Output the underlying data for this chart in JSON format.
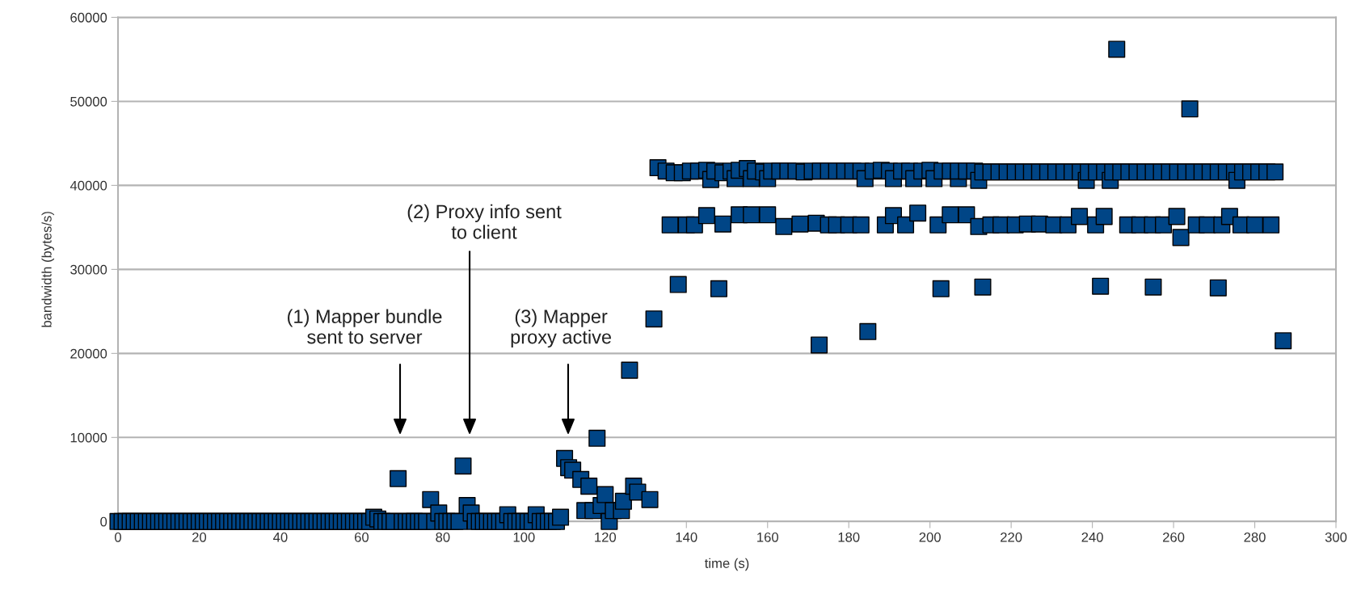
{
  "chart_data": {
    "type": "scatter",
    "xlabel": "time (s)",
    "ylabel": "bandwidth (bytes/s)",
    "xlim": [
      0,
      300
    ],
    "xticks": [
      0,
      20,
      40,
      60,
      80,
      100,
      120,
      140,
      160,
      180,
      200,
      220,
      240,
      260,
      280,
      300
    ],
    "ylim": [
      0,
      60000
    ],
    "yticks": [
      0,
      10000,
      20000,
      30000,
      40000,
      50000,
      60000
    ],
    "grid": "y",
    "marker": "square",
    "annotations": [
      "(1) Mapper bundle\nsent to server",
      "(2) Proxy info sent\nto client",
      "(3) Mapper\nproxy active"
    ],
    "series": [
      {
        "color": "#004586",
        "x": [
          0,
          1,
          2,
          3,
          4,
          5,
          6,
          7,
          8,
          9,
          10,
          11,
          12,
          13,
          14,
          15,
          16,
          17,
          18,
          19,
          20,
          21,
          22,
          23,
          24,
          25,
          26,
          27,
          28,
          29,
          30,
          31,
          32,
          33,
          34,
          35,
          36,
          37,
          38,
          39,
          40,
          41,
          42,
          43,
          44,
          45,
          46,
          47,
          48,
          49,
          50,
          51,
          52,
          53,
          54,
          55,
          56,
          57,
          58,
          59,
          60,
          61,
          62,
          63,
          64,
          65,
          66,
          67,
          68,
          69,
          70,
          71,
          72,
          73,
          74,
          75,
          76,
          77,
          78,
          79,
          80,
          81,
          82,
          83,
          84,
          85,
          86,
          87,
          88,
          89,
          90,
          91,
          92,
          93,
          94,
          95,
          96,
          97,
          98,
          99,
          100,
          101,
          102,
          103,
          104,
          105,
          106,
          107,
          108,
          109,
          110,
          111,
          112,
          114,
          115,
          116,
          117,
          118,
          119,
          120,
          121,
          122,
          124,
          124.5,
          126,
          127,
          128,
          131,
          132,
          133,
          135,
          136,
          137,
          138,
          139,
          140,
          141,
          142,
          143,
          145,
          145,
          146,
          147,
          148,
          149,
          149,
          151,
          152,
          153,
          153,
          155,
          156,
          156,
          157,
          159,
          160,
          160,
          161,
          163,
          164,
          165,
          167,
          168,
          169,
          171,
          172,
          172.7,
          173,
          175,
          175,
          177,
          177,
          179,
          180,
          181,
          183,
          183,
          184,
          184.7,
          186,
          188,
          189,
          190,
          191,
          191,
          193,
          194,
          195,
          196,
          197,
          198,
          200,
          201,
          202,
          202.7,
          203,
          205,
          205,
          207,
          207,
          209,
          209,
          211,
          212,
          212,
          213,
          213,
          215,
          215,
          217,
          217.5,
          219,
          221,
          221,
          223,
          224,
          225,
          227,
          227,
          229,
          230.5,
          231,
          233,
          234,
          235,
          236.8,
          237,
          238.5,
          239,
          240.8,
          241,
          242,
          242.9,
          243,
          244.4,
          245,
          246,
          247,
          248.7,
          249,
          251,
          251.7,
          253,
          254.8,
          255,
          255,
          257,
          257.5,
          259,
          260.8,
          261,
          261.8,
          263,
          264,
          265,
          265.6,
          267,
          268.3,
          269,
          271,
          271,
          271.9,
          273,
          273.8,
          275,
          275.6,
          276.6,
          277,
          279,
          280,
          281,
          283,
          284,
          285,
          287
        ],
        "values": [
          0,
          0,
          0,
          0,
          0,
          0,
          0,
          0,
          0,
          0,
          0,
          0,
          0,
          0,
          0,
          0,
          0,
          0,
          0,
          0,
          0,
          0,
          0,
          0,
          0,
          0,
          0,
          0,
          0,
          0,
          0,
          0,
          0,
          0,
          0,
          0,
          0,
          0,
          0,
          0,
          0,
          0,
          0,
          0,
          0,
          0,
          0,
          0,
          0,
          0,
          0,
          0,
          0,
          0,
          0,
          0,
          0,
          0,
          0,
          0,
          0,
          0,
          0,
          500,
          300,
          0,
          0,
          0,
          0,
          5100,
          0,
          0,
          0,
          0,
          0,
          0,
          0,
          2600,
          0,
          1000,
          0,
          0,
          0,
          0,
          0,
          6600,
          1900,
          1000,
          0,
          0,
          0,
          0,
          0,
          0,
          0,
          0,
          800,
          0,
          0,
          0,
          0,
          0,
          0,
          800,
          0,
          0,
          0,
          0,
          0,
          500,
          7500,
          6400,
          6100,
          5000,
          1300,
          4200,
          1300,
          9900,
          1900,
          3200,
          0,
          1300,
          1300,
          2400,
          18000,
          4200,
          3500,
          2600,
          24100,
          42100,
          41700,
          35300,
          41500,
          28200,
          41500,
          35300,
          41700,
          35300,
          41700,
          41800,
          36400,
          40700,
          41700,
          27700,
          35400,
          41500,
          41700,
          40800,
          41800,
          36500,
          42000,
          36500,
          40800,
          41700,
          41600,
          36500,
          40800,
          41700,
          41700,
          35100,
          41700,
          41700,
          35400,
          41600,
          41700,
          35500,
          21000,
          41700,
          41700,
          35300,
          35300,
          41700,
          41700,
          35300,
          41700,
          35300,
          41700,
          40800,
          22600,
          41700,
          41800,
          35300,
          41700,
          40800,
          36400,
          41700,
          35300,
          41700,
          40800,
          36700,
          41700,
          41800,
          40800,
          35300,
          27700,
          41700,
          36500,
          41700,
          40800,
          41700,
          36500,
          41700,
          41700,
          35100,
          40600,
          27900,
          41600,
          35300,
          41600,
          41600,
          35300,
          41600,
          35300,
          41600,
          41600,
          35400,
          41600,
          35400,
          41600,
          41600,
          35300,
          41600,
          41600,
          35300,
          41600,
          36300,
          41600,
          40600,
          41600,
          35300,
          41600,
          28000,
          36300,
          41600,
          40600,
          41600,
          56200,
          41600,
          35300,
          41600,
          41600,
          35300,
          41600,
          35300,
          27900,
          41600,
          41600,
          35300,
          41600,
          36300,
          41600,
          33800,
          41600,
          49100,
          41600,
          35300,
          41600,
          35300,
          41600,
          27800,
          41600,
          35300,
          41600,
          36300,
          41600,
          40600,
          35300,
          41600,
          41600,
          35300,
          41600,
          41600,
          35300,
          41600,
          21500
        ]
      }
    ]
  }
}
